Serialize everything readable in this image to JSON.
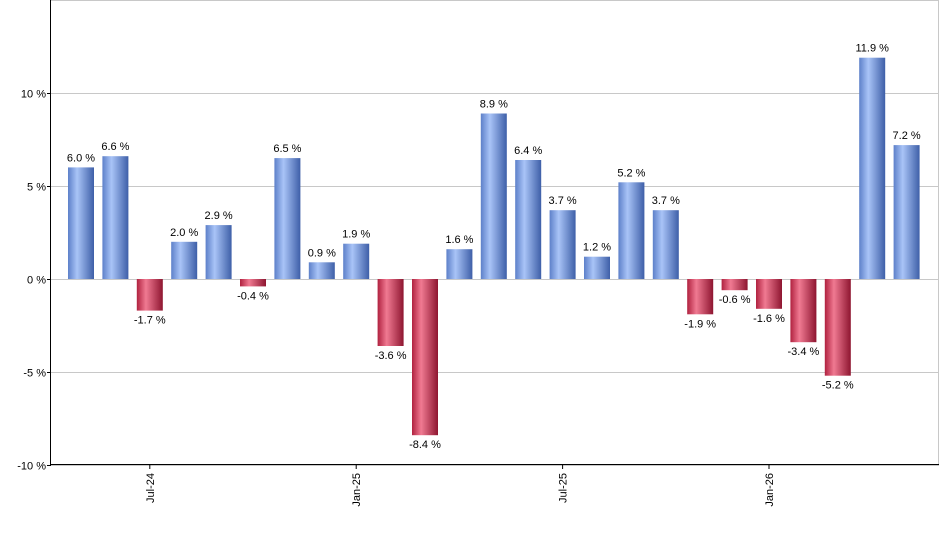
{
  "chart_data": {
    "type": "bar",
    "title": "",
    "xlabel": "",
    "ylabel": "",
    "ylim": [
      -10,
      15
    ],
    "grid": true,
    "y_ticks": [
      {
        "value": -10,
        "label": "-10 %"
      },
      {
        "value": -5,
        "label": "-5 %"
      },
      {
        "value": 0,
        "label": "0 %"
      },
      {
        "value": 5,
        "label": "5 %"
      },
      {
        "value": 10,
        "label": "10 %"
      }
    ],
    "reference_line": {
      "value": 10,
      "color": "#2e7d32"
    },
    "x_tick_labels": [
      {
        "index": 2,
        "label": "Jul-24"
      },
      {
        "index": 8,
        "label": "Jan-25"
      },
      {
        "index": 14,
        "label": "Jul-25"
      },
      {
        "index": 20,
        "label": "Jan-26"
      }
    ],
    "values": [
      6.0,
      6.6,
      -1.7,
      2.0,
      2.9,
      -0.4,
      6.5,
      0.9,
      1.9,
      -3.6,
      -8.4,
      1.6,
      8.9,
      6.4,
      3.7,
      1.2,
      5.2,
      3.7,
      -1.9,
      -0.6,
      -1.6,
      -3.4,
      -5.2,
      11.9,
      7.2
    ],
    "labels": [
      "6.0 %",
      "6.6 %",
      "-1.7 %",
      "2.0 %",
      "2.9 %",
      "-0.4 %",
      "6.5 %",
      "0.9 %",
      "1.9 %",
      "-3.6 %",
      "-8.4 %",
      "1.6 %",
      "8.9 %",
      "6.4 %",
      "3.7 %",
      "1.2 %",
      "5.2 %",
      "3.7 %",
      "-1.9 %",
      "-0.6 %",
      "-1.6 %",
      "-3.4 %",
      "-5.2 %",
      "11.9 %",
      "7.2 %"
    ],
    "colors": {
      "positive": "#7fa6e8",
      "negative": "#c8304e"
    }
  }
}
